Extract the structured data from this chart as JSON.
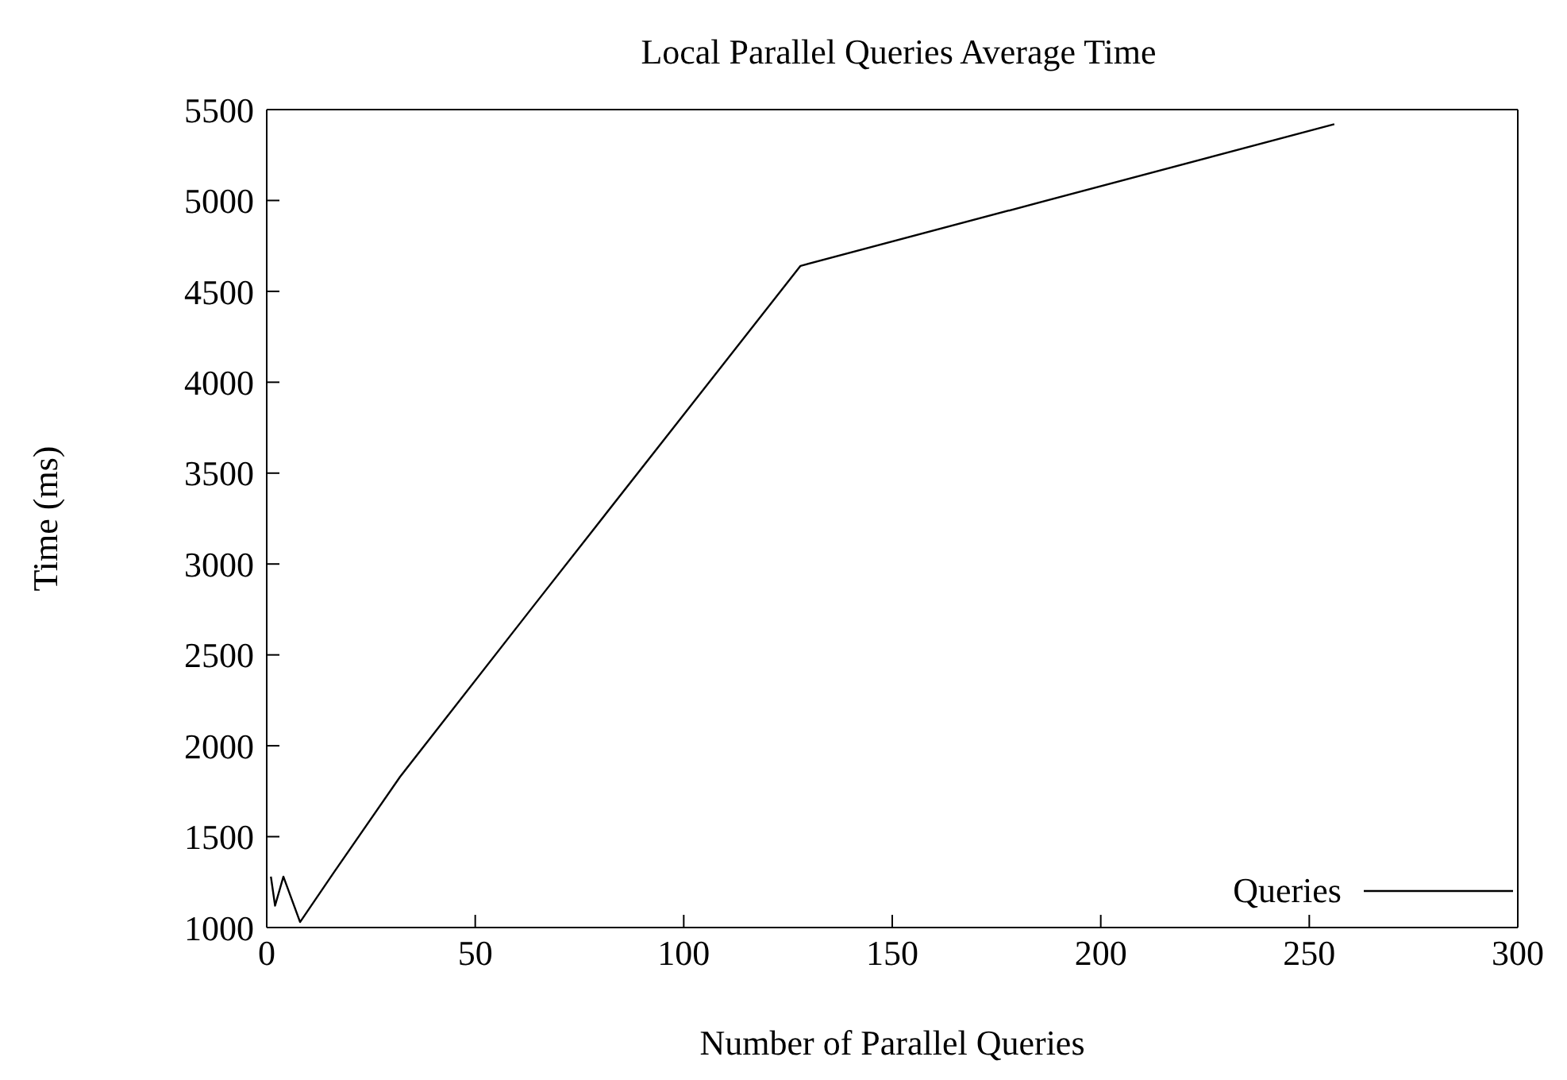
{
  "chart_data": {
    "type": "line",
    "title": "Local Parallel Queries Average Time",
    "xlabel": "Number of Parallel Queries",
    "ylabel": "Time (ms)",
    "x": [
      1,
      2,
      4,
      8,
      16,
      32,
      64,
      128,
      256
    ],
    "series": [
      {
        "name": "Queries",
        "color": "#000000",
        "values": [
          1280,
          1120,
          1280,
          1030,
          1300,
          1830,
          2770,
          4640,
          5420
        ]
      }
    ],
    "xlim": [
      0,
      300
    ],
    "xticks": [
      0,
      50,
      100,
      150,
      200,
      250,
      300
    ],
    "ylim": [
      1000,
      5500
    ],
    "yticks": [
      1000,
      1500,
      2000,
      2500,
      3000,
      3500,
      4000,
      4500,
      5000,
      5500
    ],
    "grid": false,
    "legend": "bottom right",
    "marker": "none",
    "line_style": "solid"
  }
}
